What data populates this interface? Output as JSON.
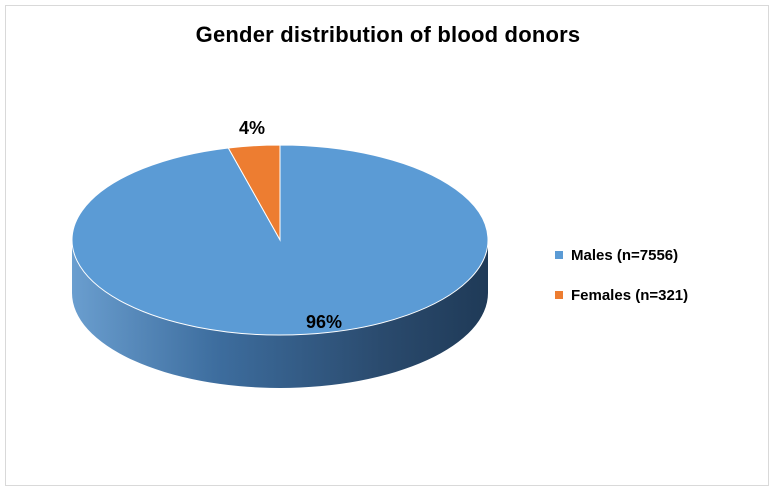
{
  "chart_data": {
    "type": "pie",
    "title": "Gender distribution of blood donors",
    "slices": [
      {
        "label": "Males (n=7556)",
        "value": 96,
        "data_label": "96%",
        "color": "#5b9bd5"
      },
      {
        "label": "Females (n=321)",
        "value": 4,
        "data_label": "4%",
        "color": "#ed7d31"
      }
    ],
    "legend_position": "right",
    "style": "3d"
  }
}
